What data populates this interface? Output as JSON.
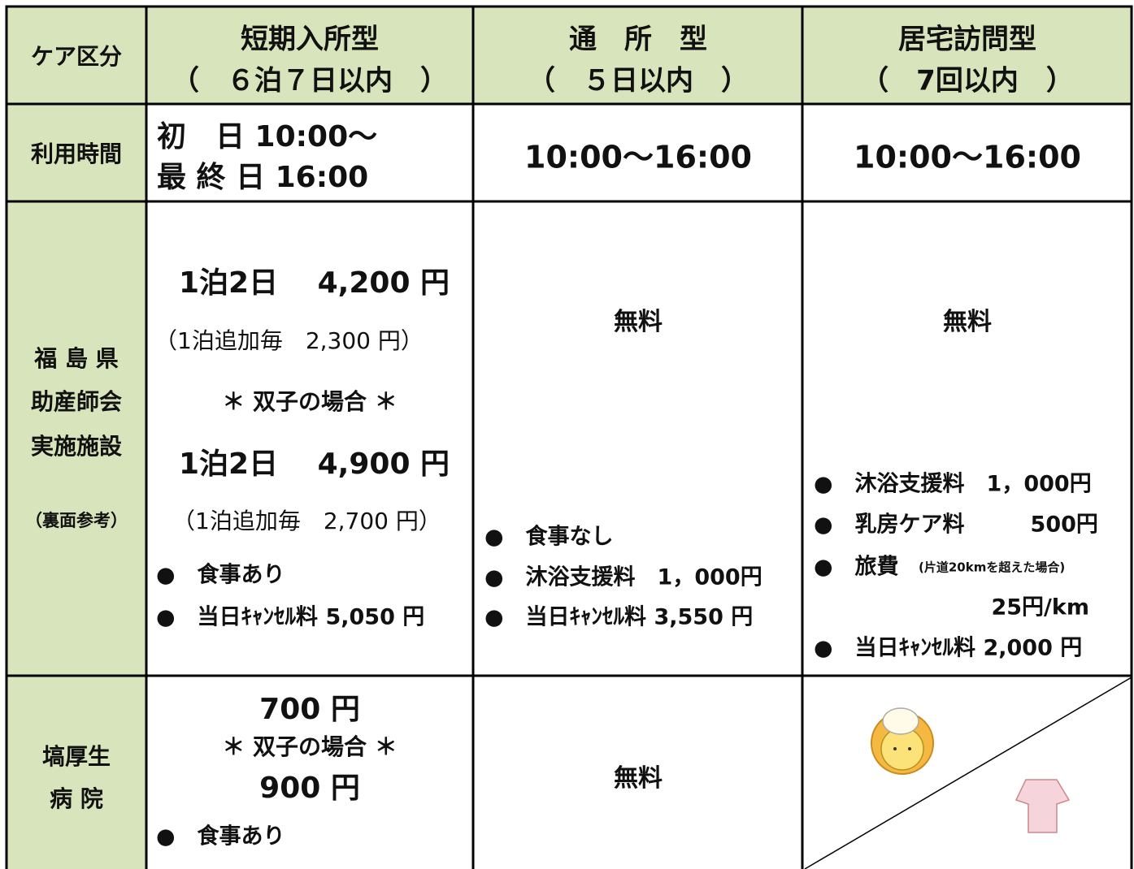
{
  "table": {
    "header": {
      "label": "ケア区分",
      "columns": [
        [
          "短期入所型",
          "（　６泊７日以内　）"
        ],
        [
          "通　所　型",
          "（　５日以内　）"
        ],
        [
          "居宅訪問型",
          "（　7回以内　）"
        ]
      ]
    },
    "rows": [
      {
        "label": [
          "利用時間"
        ],
        "cells": [
          [
            "初　日 10:00～",
            "最 終 日 16:00"
          ],
          [
            "10:00～16:00"
          ],
          [
            "10:00～16:00"
          ]
        ]
      },
      {
        "label": [
          "福 島 県",
          "助産師会",
          "実施施設",
          "（裏面参考）"
        ],
        "cells": [
          [
            "1泊2日　 4,200 円",
            "（1泊追加毎　2,300 円）",
            "＊ 双子の場合 ＊",
            "1泊2日　 4,900 円",
            "（1泊追加毎　2,700 円）",
            "●　食事あり",
            "●　当日ｷｬﾝｾﾙ料 5,050 円"
          ],
          [
            "無料",
            "●　食事なし",
            "●　沐浴支援料　1，000円",
            "●　当日ｷｬﾝｾﾙ料 3,550 円"
          ],
          [
            "無料",
            "●　沐浴支援料　1，000円",
            "●　乳房ケア料　　　500円",
            "●　旅費",
            "(片道20kmを超えた場合)",
            "25円/km",
            "●　当日ｷｬﾝｾﾙ料 2,000 円"
          ]
        ]
      },
      {
        "label": [
          "塙厚生",
          "病 院"
        ],
        "cells": [
          [
            "700 円",
            "＊ 双子の場合 ＊",
            "900 円",
            "●　食事あり"
          ],
          [
            "無料"
          ],
          []
        ]
      }
    ]
  }
}
